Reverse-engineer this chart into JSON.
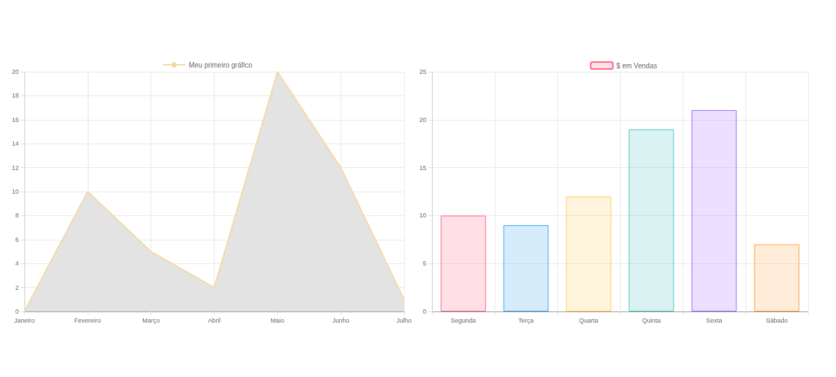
{
  "chart_data": [
    {
      "type": "area",
      "categories": [
        "Janeiro",
        "Fevereiro",
        "Março",
        "Abril",
        "Maio",
        "Junho",
        "Julho"
      ],
      "series": [
        {
          "name": "Meu primeiro gráfico",
          "color": "#e3e3e3",
          "values": [
            0,
            10,
            5,
            2,
            20,
            12,
            1
          ]
        }
      ],
      "ylim": [
        0,
        20
      ],
      "yticks": [
        0,
        2,
        4,
        6,
        8,
        10,
        12,
        14,
        16,
        18,
        20
      ],
      "grid": true,
      "legend": "top",
      "line_style": "solid"
    },
    {
      "type": "bar",
      "categories": [
        "Segunda",
        "Terça",
        "Quarta",
        "Quinta",
        "Sexta",
        "Sábado"
      ],
      "series": [
        {
          "name": "$ em Vendas",
          "colors": [
            "#ff6384",
            "#36a2eb",
            "#ffce56",
            "#4bc0c0",
            "#9966ff",
            "#ff9f40"
          ],
          "values": [
            10,
            9,
            12,
            19,
            21,
            7
          ]
        }
      ],
      "ylim": [
        0,
        25
      ],
      "yticks": [
        0,
        5,
        10,
        15,
        20,
        25
      ],
      "grid": true,
      "legend": "top"
    }
  ]
}
